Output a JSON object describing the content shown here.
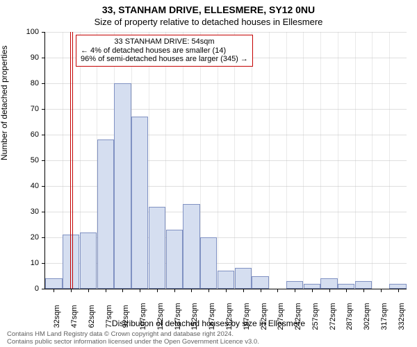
{
  "titles": {
    "line1": "33, STANHAM DRIVE, ELLESMERE, SY12 0NU",
    "line2": "Size of property relative to detached houses in Ellesmere"
  },
  "chart": {
    "type": "histogram",
    "ylabel": "Number of detached properties",
    "xlabel": "Distribution of detached houses by size in Ellesmere",
    "ylim": [
      0,
      100
    ],
    "ytick_step": 10,
    "plot_bg": "#ffffff",
    "grid_color": "#bfbfbf",
    "bar_fill": "#d5def0",
    "bar_edge": "#8091c2",
    "bins": [
      {
        "label": "32sqm",
        "value": 4
      },
      {
        "label": "47sqm",
        "value": 21
      },
      {
        "label": "62sqm",
        "value": 22
      },
      {
        "label": "77sqm",
        "value": 58
      },
      {
        "label": "92sqm",
        "value": 80
      },
      {
        "label": "107sqm",
        "value": 67
      },
      {
        "label": "122sqm",
        "value": 32
      },
      {
        "label": "137sqm",
        "value": 23
      },
      {
        "label": "152sqm",
        "value": 33
      },
      {
        "label": "167sqm",
        "value": 20
      },
      {
        "label": "182sqm",
        "value": 7
      },
      {
        "label": "197sqm",
        "value": 8
      },
      {
        "label": "212sqm",
        "value": 5
      },
      {
        "label": "227sqm",
        "value": 0
      },
      {
        "label": "242sqm",
        "value": 3
      },
      {
        "label": "257sqm",
        "value": 2
      },
      {
        "label": "272sqm",
        "value": 4
      },
      {
        "label": "287sqm",
        "value": 2
      },
      {
        "label": "302sqm",
        "value": 3
      },
      {
        "label": "317sqm",
        "value": 0
      },
      {
        "label": "332sqm",
        "value": 2
      }
    ],
    "marker": {
      "color": "#c40000",
      "bin_index": 1,
      "position_in_bin": 0.47
    },
    "annotation": {
      "lines": [
        "33 STANHAM DRIVE: 54sqm",
        "← 4% of detached houses are smaller (14)",
        "96% of semi-detached houses are larger (345) →"
      ],
      "border_color": "#c40000",
      "bg": "#ffffff"
    }
  },
  "footer": {
    "line1": "Contains HM Land Registry data © Crown copyright and database right 2024.",
    "line2": "Contains public sector information licensed under the Open Government Licence v3.0."
  },
  "style": {
    "title_fontsize": 14,
    "subtitle_fontsize": 13,
    "axis_label_fontsize": 12,
    "tick_fontsize": 11,
    "anno_fontsize": 11,
    "footer_fontsize": 9.5,
    "footer_color": "#606060"
  }
}
